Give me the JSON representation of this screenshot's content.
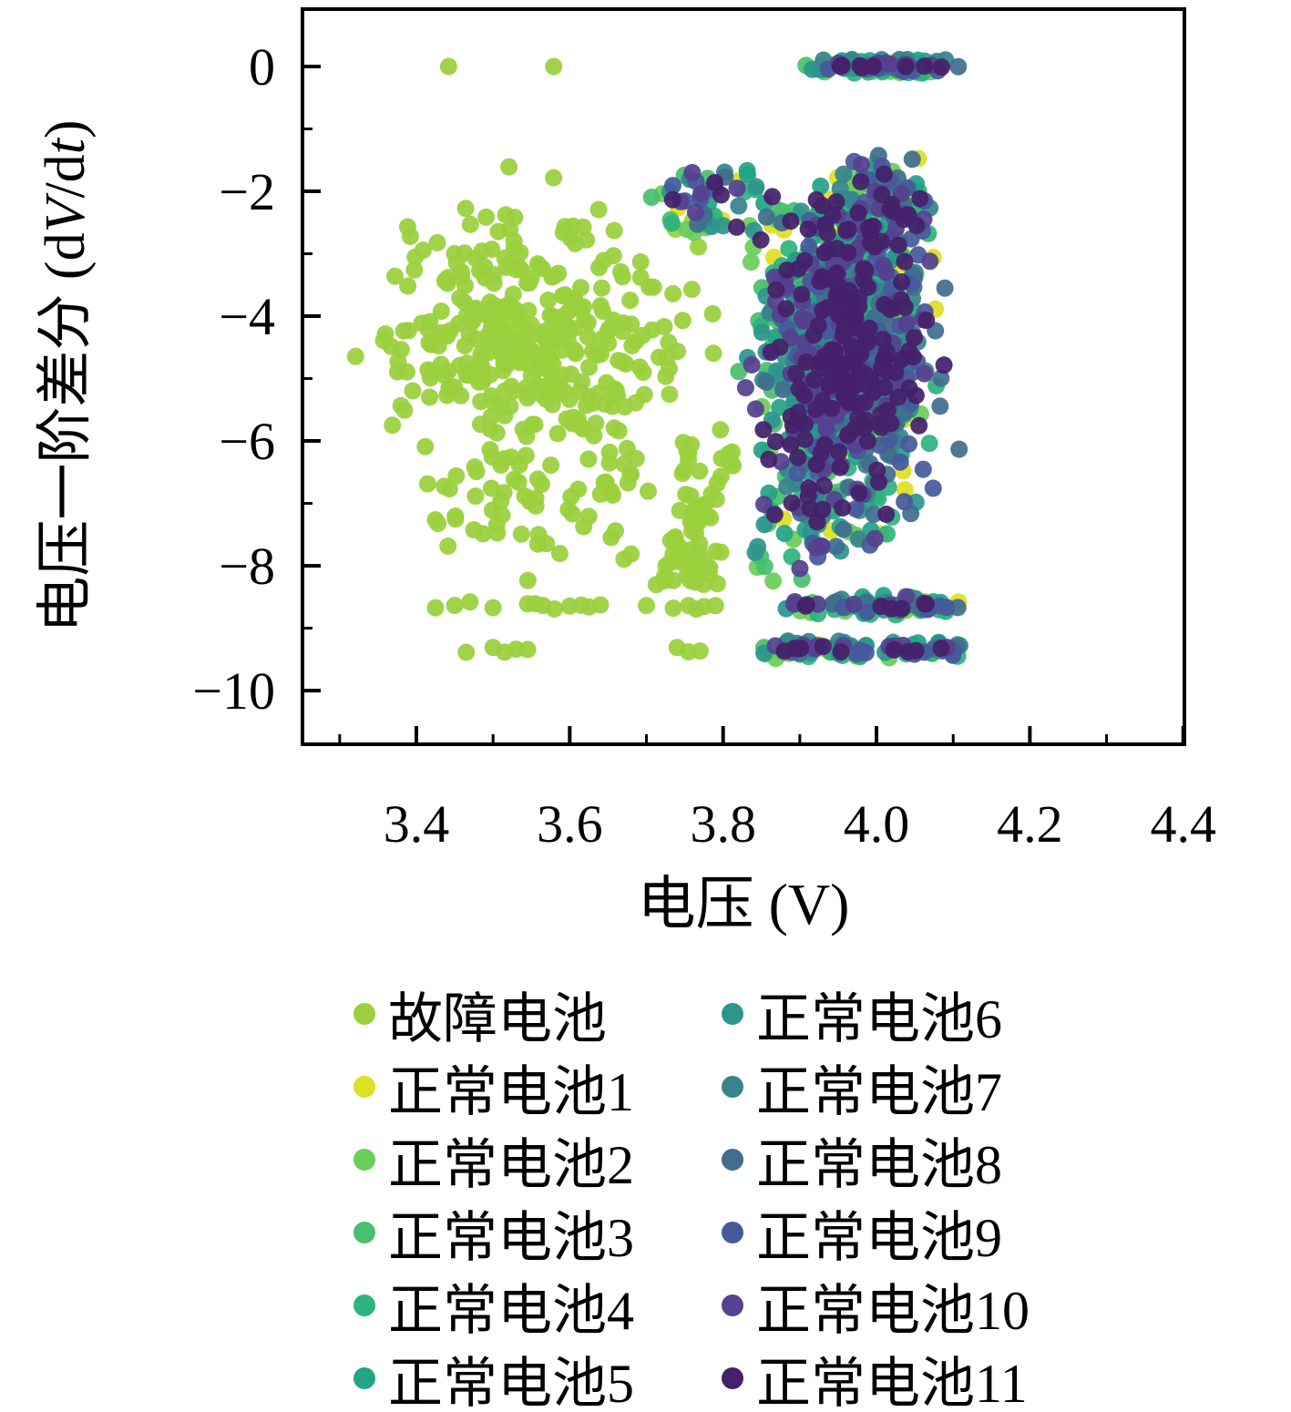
{
  "chart_data": {
    "type": "scatter",
    "title": "",
    "xlabel": "电压 (V)",
    "ylabel": "电压一阶差分 (dV/dt)",
    "ylabel_parts": [
      "电压一阶差分 (d",
      "V",
      "/d",
      "t",
      ")"
    ],
    "xlim": [
      3.2515,
      4.4015
    ],
    "ylim": [
      -10.86,
      0.92
    ],
    "xticks": {
      "values": [
        3.4,
        3.6,
        3.8,
        4.0,
        4.2,
        4.4
      ],
      "labels": [
        "3.4",
        "3.6",
        "3.8",
        "4.0",
        "4.2",
        "4.4"
      ]
    },
    "yticks": {
      "values": [
        0,
        -2,
        -4,
        -6,
        -8,
        -10
      ],
      "labels": [
        "0",
        "−2",
        "−4",
        "−6",
        "−8",
        "−10"
      ]
    },
    "xminor": [
      3.3,
      3.5,
      3.7,
      3.9,
      4.1,
      4.3
    ],
    "yminor": [
      -1,
      -3,
      -5,
      -7,
      -9
    ],
    "grid": false,
    "legend_position": "below-two-columns",
    "marker_radius_px": 9.5,
    "marker_opacity": 0.93,
    "series": [
      {
        "name": "故障电池",
        "color": "#9ad03c",
        "seed": 7,
        "dx": 0,
        "dy": 0,
        "parts": [
          {
            "type": "gauss",
            "n": 330,
            "cx": 3.545,
            "cy": -4.3,
            "sx": 0.1,
            "sy": 0.95,
            "clip": [
              3.31,
              3.8,
              -7.0,
              -1.55
            ]
          },
          {
            "type": "gauss",
            "n": 70,
            "cx": 3.56,
            "cy": -6.6,
            "sx": 0.09,
            "sy": 0.8,
            "clip": [
              3.4,
              3.74,
              -8.35,
              -5.2
            ]
          },
          {
            "type": "streak",
            "n": 30,
            "from": [
              3.715,
              -8.35
            ],
            "to": [
              3.815,
              -6.15
            ],
            "jx": 0.008,
            "jy": 0.1
          },
          {
            "type": "streak",
            "n": 16,
            "from": [
              3.753,
              -5.95
            ],
            "to": [
              3.758,
              -7.5
            ],
            "jx": 0.006,
            "jy": 0.1
          },
          {
            "type": "gauss",
            "n": 22,
            "cx": 3.76,
            "cy": -8.0,
            "sx": 0.02,
            "sy": 0.25,
            "clip": [
              3.7,
              3.82,
              -8.4,
              -7.5
            ]
          },
          {
            "type": "band",
            "y": -8.65,
            "jy": 0.035,
            "xs": [
              3.425,
              3.45,
              3.47,
              3.5,
              3.545,
              3.555,
              3.565,
              3.58,
              3.6,
              3.615,
              3.625,
              3.64,
              3.7,
              3.735,
              3.755,
              3.765,
              3.775,
              3.79
            ]
          },
          {
            "type": "band",
            "y": -9.35,
            "jy": 0.03,
            "xs": [
              3.465,
              3.5,
              3.515,
              3.53,
              3.545,
              3.74,
              3.755,
              3.77
            ]
          },
          {
            "type": "points",
            "pts": [
              [
                3.442,
                0
              ],
              [
                3.579,
                0
              ]
            ]
          }
        ]
      },
      {
        "name": "正常电池1",
        "color": "#dde025",
        "seed": 101,
        "dx": 0.016,
        "dy": 0.04,
        "core_n": 85
      },
      {
        "name": "正常电池2",
        "color": "#6bce59",
        "seed": 102,
        "dx": -0.012,
        "dy": -0.08,
        "core_n": 85
      },
      {
        "name": "正常电池3",
        "color": "#48c06d",
        "seed": 103,
        "dx": -0.02,
        "dy": 0.02,
        "core_n": 85
      },
      {
        "name": "正常电池4",
        "color": "#2eb37d",
        "seed": 104,
        "dx": 0.008,
        "dy": -0.1,
        "core_n": 85
      },
      {
        "name": "正常电池5",
        "color": "#23a486",
        "seed": 105,
        "dx": -0.005,
        "dy": 0.09,
        "core_n": 85
      },
      {
        "name": "正常电池6",
        "color": "#2c968e",
        "seed": 106,
        "dx": -0.018,
        "dy": -0.04,
        "core_n": 85
      },
      {
        "name": "正常电池7",
        "color": "#37848c",
        "seed": 107,
        "dx": 0.006,
        "dy": 0.1,
        "core_n": 85
      },
      {
        "name": "正常电池8",
        "color": "#3f6e8e",
        "seed": 108,
        "dx": 0.02,
        "dy": 0.0,
        "core_n": 85
      },
      {
        "name": "正常电池9",
        "color": "#46599c",
        "seed": 109,
        "dx": 0.013,
        "dy": -0.05,
        "core_n": 85
      },
      {
        "name": "正常电池10",
        "color": "#55418f",
        "seed": 110,
        "dx": -0.008,
        "dy": 0.05,
        "core_n": 85
      },
      {
        "name": "正常电池11",
        "color": "#45206b",
        "seed": 111,
        "dx": 0.0,
        "dy": 0.0,
        "core_n": 175
      }
    ],
    "normal_base_parts": [
      {
        "type": "gauss",
        "n": 0,
        "cx": 3.958,
        "cy": -4.55,
        "sx": 0.052,
        "sy": 1.3,
        "clip": [
          3.835,
          4.088,
          -8.38,
          -2.0
        ]
      },
      {
        "type": "gauss",
        "n": 9,
        "cx": 4.01,
        "cy": -2.2,
        "sx": 0.04,
        "sy": 0.5,
        "clip": [
          3.9,
          4.075,
          -3.4,
          -1.35
        ]
      },
      {
        "type": "uniform",
        "n": 5,
        "xr": [
          3.72,
          3.87
        ],
        "yr": [
          -2.6,
          -1.75
        ]
      },
      {
        "type": "uniform",
        "n": 4,
        "xr": [
          3.855,
          3.935
        ],
        "yr": [
          -8.3,
          -6.0
        ]
      },
      {
        "type": "band",
        "y": 0,
        "jy": 0.012,
        "n": 8,
        "xr": [
          3.921,
          4.088
        ]
      },
      {
        "type": "band",
        "y": -8.65,
        "jy": 0.035,
        "n": 7,
        "xr": [
          3.9,
          4.095
        ]
      },
      {
        "type": "band",
        "y": -9.35,
        "jy": 0.03,
        "n": 9,
        "xr": [
          3.868,
          4.103
        ]
      }
    ],
    "legend_entries": [
      {
        "label": "故障电池",
        "color": "#9ad03c"
      },
      {
        "label": "正常电池1",
        "color": "#dde025"
      },
      {
        "label": "正常电池2",
        "color": "#6bce59"
      },
      {
        "label": "正常电池3",
        "color": "#48c06d"
      },
      {
        "label": "正常电池4",
        "color": "#2eb37d"
      },
      {
        "label": "正常电池5",
        "color": "#23a486"
      },
      {
        "label": "正常电池6",
        "color": "#2c968e"
      },
      {
        "label": "正常电池7",
        "color": "#37848c"
      },
      {
        "label": "正常电池8",
        "color": "#3f6e8e"
      },
      {
        "label": "正常电池9",
        "color": "#46599c"
      },
      {
        "label": "正常电池10",
        "color": "#55418f"
      },
      {
        "label": "正常电池11",
        "color": "#45206b"
      }
    ]
  }
}
